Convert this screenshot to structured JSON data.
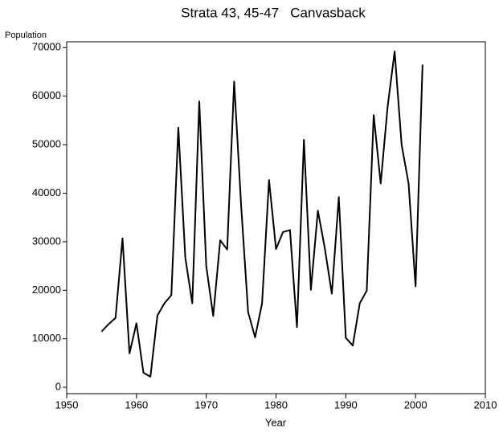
{
  "chart_data": {
    "type": "line",
    "title": "Strata 43, 45-47   Canvasback",
    "x_label": "Year",
    "y_label": "Population",
    "x": [
      1955,
      1956,
      1957,
      1958,
      1959,
      1960,
      1961,
      1962,
      1963,
      1964,
      1965,
      1966,
      1967,
      1968,
      1969,
      1970,
      1971,
      1972,
      1973,
      1974,
      1975,
      1976,
      1977,
      1978,
      1979,
      1980,
      1981,
      1982,
      1983,
      1984,
      1985,
      1986,
      1987,
      1988,
      1989,
      1990,
      1991,
      1992,
      1993,
      1994,
      1995,
      1996,
      1997,
      1998,
      1999,
      2000,
      2001
    ],
    "series": [
      {
        "name": "Canvasback",
        "color": "#000000",
        "values": [
          11500,
          13000,
          14300,
          30700,
          7000,
          13200,
          3000,
          2200,
          14800,
          17300,
          19000,
          53500,
          26700,
          17300,
          58900,
          25000,
          14700,
          30300,
          28400,
          63000,
          37500,
          15500,
          10300,
          17300,
          42700,
          28500,
          32000,
          32400,
          12400,
          51000,
          20100,
          36400,
          28600,
          19300,
          39200,
          10200,
          8600,
          17300,
          19900,
          56100,
          42000,
          57900,
          69200,
          50000,
          42000,
          20800,
          66500
        ]
      }
    ],
    "xlim": [
      1950,
      2010
    ],
    "xticks": [
      1950,
      1960,
      1970,
      1980,
      1990,
      2000,
      2010
    ],
    "ylim": [
      -1300,
      71200
    ],
    "yticks": [
      0,
      10000,
      20000,
      30000,
      40000,
      50000,
      60000,
      70000
    ]
  }
}
